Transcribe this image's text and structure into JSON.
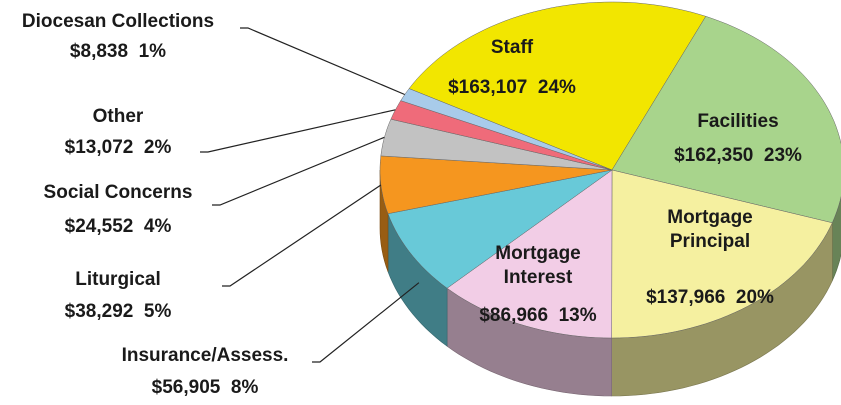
{
  "chart_data": {
    "type": "pie",
    "categories": [
      "Staff",
      "Facilities",
      "Mortgage Principal",
      "Mortgage Interest",
      "Insurance/Assess.",
      "Liturgical",
      "Social Concerns",
      "Other",
      "Diocesan Collections"
    ],
    "values": [
      163107,
      162350,
      137966,
      86966,
      56905,
      38292,
      24552,
      13072,
      8838
    ],
    "value_labels": [
      "$163,107  24%",
      "$162,350  23%",
      "$137,966  20%",
      "$86,966  13%",
      "$56,905  8%",
      "$38,292  5%",
      "$24,552  4%",
      "$13,072  2%",
      "$8,838  1%"
    ],
    "colors": [
      "#f2e600",
      "#a8d48c",
      "#f5f0a0",
      "#f2cde6",
      "#68c9d8",
      "#f5961f",
      "#c2c2c2",
      "#ef6b7a",
      "#a8cbea"
    ]
  }
}
